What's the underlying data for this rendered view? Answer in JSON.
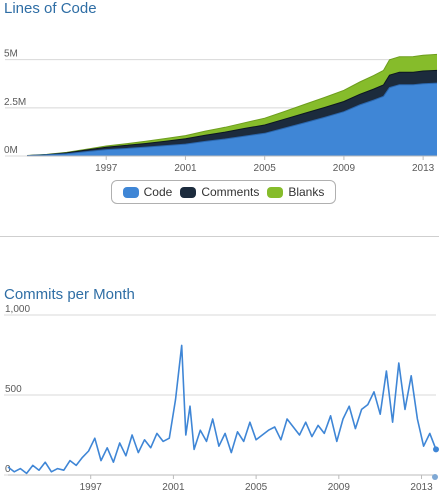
{
  "chart_data": [
    {
      "type": "area",
      "title": "Lines of Code",
      "x_ticks": [
        "1997",
        "2001",
        "2005",
        "2009",
        "2013"
      ],
      "y_ticks": [
        "5M",
        "2.5M",
        "0M"
      ],
      "ylim": [
        0,
        5500000
      ],
      "xlim": [
        1993.0,
        2013.7
      ],
      "stacked": true,
      "x": [
        1993.0,
        1994.0,
        1995.0,
        1996.0,
        1997.0,
        1998.0,
        1999.0,
        2000.0,
        2001.0,
        2002.0,
        2003.0,
        2004.0,
        2005.0,
        2006.0,
        2007.0,
        2008.0,
        2009.0,
        2009.8,
        2010.5,
        2011.0,
        2011.3,
        2011.8,
        2012.5,
        2013.0,
        2013.7
      ],
      "series": [
        {
          "name": "Code",
          "color": "#3f86d6",
          "values": [
            20000,
            60000,
            120000,
            230000,
            330000,
            390000,
            460000,
            540000,
            620000,
            760000,
            880000,
            1030000,
            1180000,
            1450000,
            1720000,
            2000000,
            2300000,
            2650000,
            2900000,
            3100000,
            3550000,
            3700000,
            3700000,
            3750000,
            3780000
          ]
        },
        {
          "name": "Comments",
          "color": "#1c2b3d",
          "values": [
            3000,
            15000,
            40000,
            80000,
            120000,
            160000,
            190000,
            230000,
            270000,
            320000,
            360000,
            400000,
            430000,
            460000,
            490000,
            510000,
            530000,
            550000,
            570000,
            590000,
            640000,
            650000,
            650000,
            660000,
            660000
          ]
        },
        {
          "name": "Blanks",
          "color": "#86bc2b",
          "values": [
            3000,
            10000,
            25000,
            45000,
            70000,
            90000,
            115000,
            140000,
            170000,
            210000,
            250000,
            300000,
            350000,
            400000,
            460000,
            520000,
            580000,
            640000,
            700000,
            750000,
            800000,
            800000,
            810000,
            820000,
            830000
          ]
        }
      ],
      "legend": {
        "position": "bottom",
        "labels": [
          "Code",
          "Comments",
          "Blanks"
        ]
      }
    },
    {
      "type": "line",
      "title": "Commits per Month",
      "x_ticks": [
        "1997",
        "2001",
        "2005",
        "2009",
        "2013"
      ],
      "y_ticks": [
        "1,000",
        "500",
        "0"
      ],
      "ylim": [
        0,
        1000
      ],
      "xlim": [
        1993.0,
        2013.7
      ],
      "x": [
        1993.0,
        1993.3,
        1993.6,
        1993.9,
        1994.2,
        1994.5,
        1994.8,
        1995.1,
        1995.4,
        1995.7,
        1996.0,
        1996.3,
        1996.6,
        1996.9,
        1997.2,
        1997.5,
        1997.8,
        1998.1,
        1998.4,
        1998.7,
        1999.0,
        1999.3,
        1999.6,
        1999.9,
        2000.2,
        2000.5,
        2000.8,
        2001.1,
        2001.4,
        2001.6,
        2001.8,
        2002.0,
        2002.3,
        2002.6,
        2002.9,
        2003.2,
        2003.5,
        2003.8,
        2004.1,
        2004.4,
        2004.7,
        2005.0,
        2005.3,
        2005.6,
        2005.9,
        2006.2,
        2006.5,
        2006.8,
        2007.1,
        2007.4,
        2007.7,
        2008.0,
        2008.3,
        2008.6,
        2008.9,
        2009.2,
        2009.5,
        2009.8,
        2010.1,
        2010.4,
        2010.7,
        2011.0,
        2011.3,
        2011.6,
        2011.9,
        2012.2,
        2012.5,
        2012.8,
        2013.1,
        2013.4,
        2013.7
      ],
      "values": [
        50,
        20,
        40,
        10,
        60,
        30,
        80,
        20,
        40,
        30,
        90,
        60,
        110,
        150,
        230,
        90,
        170,
        80,
        200,
        120,
        250,
        140,
        220,
        170,
        260,
        210,
        230,
        470,
        810,
        250,
        430,
        160,
        280,
        210,
        350,
        180,
        260,
        140,
        270,
        210,
        330,
        220,
        250,
        280,
        300,
        220,
        350,
        300,
        250,
        330,
        240,
        310,
        260,
        370,
        210,
        350,
        430,
        290,
        410,
        440,
        520,
        380,
        650,
        330,
        700,
        410,
        620,
        350,
        180,
        260,
        160
      ],
      "legend": null
    }
  ]
}
